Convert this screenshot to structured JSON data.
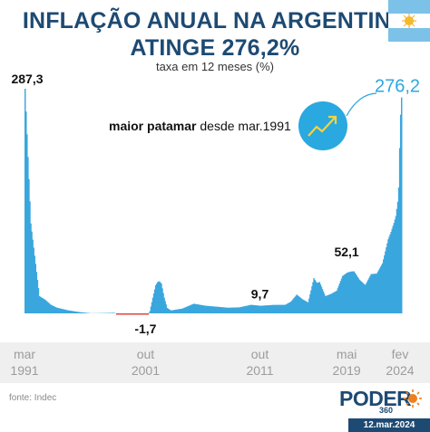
{
  "header": {
    "title_line1": "INFLAÇÃO ANUAL NA ARGENTINA",
    "title_line2": "ATINGE 276,2%",
    "subtitle": "taxa em 12 meses (%)"
  },
  "annotation": {
    "bold": "maior patamar",
    "rest": "desde mar.1991"
  },
  "source": "fonte: Indec",
  "brand": {
    "name": "PODER",
    "number": "360",
    "date": "12.mar.2024"
  },
  "colors": {
    "area": "#3aa6de",
    "negative": "#e2453c",
    "title": "#1d4a73",
    "accent": "#2aa8e0",
    "axis_band": "#efefef"
  },
  "chart_data": {
    "type": "area",
    "x_range": [
      "1991-03",
      "2024-02"
    ],
    "y_range": [
      -5,
      300
    ],
    "x_ticks": [
      {
        "label_top": "mar",
        "label_bottom": "1991",
        "date": "1991-03"
      },
      {
        "label_top": "out",
        "label_bottom": "2001",
        "date": "2001-10"
      },
      {
        "label_top": "out",
        "label_bottom": "2011",
        "date": "2011-10"
      },
      {
        "label_top": "mai",
        "label_bottom": "2019",
        "date": "2019-05"
      },
      {
        "label_top": "fev",
        "label_bottom": "2024",
        "date": "2024-02"
      }
    ],
    "data_labels": [
      {
        "date": "1991-03",
        "value": 287.3,
        "label": "287,3"
      },
      {
        "date": "2001-10",
        "value": -1.7,
        "label": "-1,7"
      },
      {
        "date": "2011-10",
        "value": 9.7,
        "label": "9,7"
      },
      {
        "date": "2019-05",
        "value": 52.1,
        "label": "52,1"
      },
      {
        "date": "2024-02",
        "value": 276.2,
        "label": "276,2"
      }
    ],
    "series": [
      {
        "points": [
          [
            "1991-03",
            287.3
          ],
          [
            "1991-06",
            200
          ],
          [
            "1991-09",
            115
          ],
          [
            "1991-12",
            84
          ],
          [
            "1992-06",
            22
          ],
          [
            "1992-12",
            17.5
          ],
          [
            "1993-06",
            11
          ],
          [
            "1993-12",
            7.4
          ],
          [
            "1994-12",
            3.9
          ],
          [
            "1995-12",
            1.6
          ],
          [
            "1996-12",
            0.1
          ],
          [
            "1997-12",
            0.3
          ],
          [
            "1998-12",
            0.7
          ],
          [
            "1999-06",
            -1
          ],
          [
            "1999-12",
            -1.8
          ],
          [
            "2000-12",
            -0.7
          ],
          [
            "2001-10",
            -1.7
          ],
          [
            "2001-12",
            -1.5
          ],
          [
            "2002-02",
            3
          ],
          [
            "2002-05",
            20
          ],
          [
            "2002-08",
            36
          ],
          [
            "2002-10",
            40
          ],
          [
            "2002-12",
            41
          ],
          [
            "2003-02",
            38
          ],
          [
            "2003-05",
            20
          ],
          [
            "2003-08",
            7
          ],
          [
            "2003-12",
            3.7
          ],
          [
            "2004-12",
            6.1
          ],
          [
            "2005-12",
            12.3
          ],
          [
            "2006-12",
            9.8
          ],
          [
            "2007-12",
            8.5
          ],
          [
            "2008-12",
            7.2
          ],
          [
            "2009-12",
            7.7
          ],
          [
            "2010-12",
            10.9
          ],
          [
            "2011-10",
            9.7
          ],
          [
            "2012-12",
            10.8
          ],
          [
            "2013-12",
            10.9
          ],
          [
            "2014-06",
            15
          ],
          [
            "2014-12",
            23.9
          ],
          [
            "2015-06",
            18
          ],
          [
            "2015-12",
            14
          ],
          [
            "2016-06",
            45
          ],
          [
            "2016-09",
            39
          ],
          [
            "2016-12",
            40
          ],
          [
            "2017-06",
            22
          ],
          [
            "2017-12",
            24.8
          ],
          [
            "2018-06",
            29
          ],
          [
            "2018-12",
            47.6
          ],
          [
            "2019-05",
            52.1
          ],
          [
            "2019-09",
            53.5
          ],
          [
            "2019-12",
            53.8
          ],
          [
            "2020-06",
            42.8
          ],
          [
            "2020-12",
            36.1
          ],
          [
            "2021-06",
            50.2
          ],
          [
            "2021-12",
            50.9
          ],
          [
            "2022-06",
            64
          ],
          [
            "2022-12",
            94.8
          ],
          [
            "2023-03",
            104.3
          ],
          [
            "2023-06",
            115.6
          ],
          [
            "2023-08",
            124.4
          ],
          [
            "2023-10",
            142.7
          ],
          [
            "2023-11",
            160.9
          ],
          [
            "2023-12",
            211.4
          ],
          [
            "2024-01",
            254.2
          ],
          [
            "2024-02",
            276.2
          ]
        ]
      }
    ]
  }
}
